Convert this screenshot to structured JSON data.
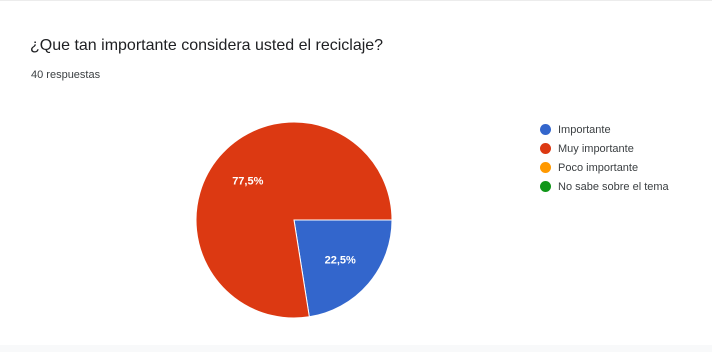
{
  "question": "¿Que tan importante considera usted el reciclaje?",
  "responses": "40 respuestas",
  "chart_data": {
    "type": "pie",
    "title": "¿Que tan importante considera usted el reciclaje?",
    "slices": [
      {
        "name": "Importante",
        "value": 22.5,
        "label": "22,5%",
        "color": "#3366cc"
      },
      {
        "name": "Muy importante",
        "value": 77.5,
        "label": "77,5%",
        "color": "#dc3912"
      },
      {
        "name": "Poco importante",
        "value": 0,
        "label": "",
        "color": "#ff9900"
      },
      {
        "name": "No sabe sobre el tema",
        "value": 0,
        "label": "",
        "color": "#109618"
      }
    ],
    "legend": "right"
  }
}
